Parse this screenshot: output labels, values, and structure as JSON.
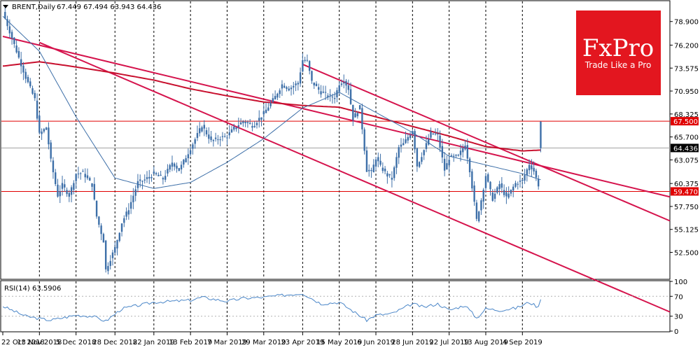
{
  "header": {
    "symbol": "BRENT,Daily",
    "ohlc": "67.449 67.494 63.943 64.436"
  },
  "logo": {
    "brand": "FxPro",
    "slogan": "Trade Like a Pro",
    "color": "#e3161f"
  },
  "colors": {
    "candle": "#3d6fa8",
    "ma_fast": "#3d6fa8",
    "ma_slow": "#c8102e",
    "channel": "#d5134c",
    "level_line": "#e00000",
    "rsi_line": "#4a86c8",
    "grid": "#000000"
  },
  "chart_data": [
    {
      "type": "candlestick",
      "title": "BRENT,Daily",
      "ylim": [
        49.5,
        81.2
      ],
      "y_ticks": [
        "78.900",
        "76.200",
        "73.575",
        "70.950",
        "68.325",
        "65.700",
        "63.075",
        "60.375",
        "57.750",
        "55.125",
        "52.500"
      ],
      "x_ticks": [
        "22 Oct 2018",
        "13 Nov 2018",
        "5 Dec 2018",
        "28 Dec 2018",
        "22 Jan 2019",
        "13 Feb 2019",
        "7 Mar 2019",
        "29 Mar 2019",
        "23 Apr 2019",
        "15 May 2019",
        "6 Jun 2019",
        "28 Jun 2019",
        "22 Jul 2019",
        "13 Aug 2019",
        "4 Sep 2019"
      ],
      "price_path": [
        [
          "22 Oct 2018",
          80.0
        ],
        [
          "26 Oct 2018",
          77.0
        ],
        [
          "1 Nov 2018",
          74.0
        ],
        [
          "5 Nov 2018",
          72.5
        ],
        [
          "9 Nov 2018",
          70.0
        ],
        [
          "13 Nov 2018",
          66.0
        ],
        [
          "16 Nov 2018",
          66.8
        ],
        [
          "20 Nov 2018",
          63.0
        ],
        [
          "23 Nov 2018",
          59.0
        ],
        [
          "27 Nov 2018",
          60.2
        ],
        [
          "30 Nov 2018",
          59.0
        ],
        [
          "5 Dec 2018",
          61.5
        ],
        [
          "10 Dec 2018",
          61.6
        ],
        [
          "14 Dec 2018",
          60.2
        ],
        [
          "18 Dec 2018",
          56.6
        ],
        [
          "21 Dec 2018",
          53.8
        ],
        [
          "24 Dec 2018",
          50.5
        ],
        [
          "28 Dec 2018",
          53.0
        ],
        [
          "2 Jan 2019",
          55.9
        ],
        [
          "7 Jan 2019",
          57.5
        ],
        [
          "11 Jan 2019",
          60.5
        ],
        [
          "16 Jan 2019",
          60.8
        ],
        [
          "22 Jan 2019",
          61.5
        ],
        [
          "28 Jan 2019",
          60.9
        ],
        [
          "1 Feb 2019",
          62.8
        ],
        [
          "6 Feb 2019",
          61.9
        ],
        [
          "13 Feb 2019",
          64.4
        ],
        [
          "20 Feb 2019",
          67.0
        ],
        [
          "26 Feb 2019",
          65.2
        ],
        [
          "4 Mar 2019",
          65.6
        ],
        [
          "7 Mar 2019",
          65.8
        ],
        [
          "12 Mar 2019",
          66.7
        ],
        [
          "18 Mar 2019",
          67.5
        ],
        [
          "22 Mar 2019",
          67.0
        ],
        [
          "25 Mar 2019",
          67.2
        ],
        [
          "29 Mar 2019",
          68.4
        ],
        [
          "5 Apr 2019",
          70.3
        ],
        [
          "10 Apr 2019",
          71.7
        ],
        [
          "15 Apr 2019",
          71.2
        ],
        [
          "19 Apr 2019",
          71.9
        ],
        [
          "23 Apr 2019",
          74.5
        ],
        [
          "25 Apr 2019",
          74.3
        ],
        [
          "29 Apr 2019",
          72.0
        ],
        [
          "3 May 2019",
          70.8
        ],
        [
          "8 May 2019",
          70.4
        ],
        [
          "13 May 2019",
          70.2
        ],
        [
          "15 May 2019",
          71.8
        ],
        [
          "17 May 2019",
          72.2
        ],
        [
          "21 May 2019",
          71.2
        ],
        [
          "23 May 2019",
          67.8
        ],
        [
          "28 May 2019",
          69.1
        ],
        [
          "31 May 2019",
          61.9
        ],
        [
          "4 Jun 2019",
          61.6
        ],
        [
          "6 Jun 2019",
          63.3
        ],
        [
          "10 Jun 2019",
          62.3
        ],
        [
          "13 Jun 2019",
          61.3
        ],
        [
          "17 Jun 2019",
          60.9
        ],
        [
          "20 Jun 2019",
          64.5
        ],
        [
          "24 Jun 2019",
          64.9
        ],
        [
          "28 Jun 2019",
          66.5
        ],
        [
          "2 Jul 2019",
          62.4
        ],
        [
          "5 Jul 2019",
          64.2
        ],
        [
          "10 Jul 2019",
          66.1
        ],
        [
          "15 Jul 2019",
          65.9
        ],
        [
          "18 Jul 2019",
          61.9
        ],
        [
          "22 Jul 2019",
          63.3
        ],
        [
          "26 Jul 2019",
          63.5
        ],
        [
          "31 Jul 2019",
          64.9
        ],
        [
          "2 Aug 2019",
          61.9
        ],
        [
          "7 Aug 2019",
          56.2
        ],
        [
          "9 Aug 2019",
          58.5
        ],
        [
          "13 Aug 2019",
          61.3
        ],
        [
          "16 Aug 2019",
          58.6
        ],
        [
          "21 Aug 2019",
          60.3
        ],
        [
          "26 Aug 2019",
          58.7
        ],
        [
          "30 Aug 2019",
          60.4
        ],
        [
          "4 Sep 2019",
          60.7
        ],
        [
          "9 Sep 2019",
          62.6
        ],
        [
          "11 Sep 2019",
          61.8
        ],
        [
          "13 Sep 2019",
          60.2
        ],
        [
          "16 Sep 2019",
          64.4
        ]
      ],
      "last_candle": {
        "open": 67.449,
        "high": 67.494,
        "low": 63.943,
        "close": 64.436
      },
      "horizontal_levels": [
        {
          "price": 67.5,
          "label": "67.500"
        },
        {
          "price": 59.47,
          "label": "59.470"
        }
      ],
      "current_price": {
        "price": 64.436,
        "label": "64.436"
      },
      "ma_fast_path": [
        [
          "22 Oct 2018",
          79.5
        ],
        [
          "13 Nov 2018",
          75.5
        ],
        [
          "5 Dec 2018",
          68.0
        ],
        [
          "28 Dec 2018",
          61.0
        ],
        [
          "22 Jan 2019",
          59.8
        ],
        [
          "13 Feb 2019",
          60.5
        ],
        [
          "7 Mar 2019",
          62.8
        ],
        [
          "29 Mar 2019",
          65.5
        ],
        [
          "23 Apr 2019",
          69.0
        ],
        [
          "15 May 2019",
          70.8
        ],
        [
          "6 Jun 2019",
          68.5
        ],
        [
          "28 Jun 2019",
          66.2
        ],
        [
          "22 Jul 2019",
          63.5
        ],
        [
          "13 Aug 2019",
          62.5
        ],
        [
          "4 Sep 2019",
          61.5
        ],
        [
          "16 Sep 2019",
          60.8
        ]
      ],
      "ma_slow_path": [
        [
          "22 Oct 2018",
          73.8
        ],
        [
          "13 Nov 2018",
          74.3
        ],
        [
          "5 Dec 2018",
          73.7
        ],
        [
          "28 Dec 2018",
          73.0
        ],
        [
          "22 Jan 2019",
          72.2
        ],
        [
          "13 Feb 2019",
          71.2
        ],
        [
          "7 Mar 2019",
          70.4
        ],
        [
          "29 Mar 2019",
          69.7
        ],
        [
          "23 Apr 2019",
          69.3
        ],
        [
          "15 May 2019",
          69.1
        ],
        [
          "6 Jun 2019",
          68.0
        ],
        [
          "28 Jun 2019",
          66.9
        ],
        [
          "22 Jul 2019",
          65.8
        ],
        [
          "13 Aug 2019",
          64.6
        ],
        [
          "4 Sep 2019",
          64.1
        ],
        [
          "16 Sep 2019",
          64.2
        ]
      ],
      "channel_lines": [
        [
          [
            "22 Oct 2018",
            77.2
          ],
          [
            "16 Sep 2019",
            62.4
          ]
        ],
        [
          [
            "23 Apr 2019",
            74.0
          ],
          [
            "16 Sep 2019",
            62.4
          ]
        ],
        [
          [
            "13 Nov 2018",
            76.5
          ],
          [
            "16 Sep 2019",
            52.0
          ]
        ]
      ]
    },
    {
      "type": "line",
      "title": "RSI(14) 63.5906",
      "ylim": [
        0,
        100
      ],
      "y_ticks": [
        "100",
        "70",
        "30",
        "0"
      ],
      "levels": [
        70,
        30
      ],
      "rsi_path": [
        [
          "22 Oct 2018",
          50
        ],
        [
          "5 Nov 2018",
          30
        ],
        [
          "13 Nov 2018",
          25
        ],
        [
          "20 Nov 2018",
          22
        ],
        [
          "5 Dec 2018",
          32
        ],
        [
          "14 Dec 2018",
          30
        ],
        [
          "24 Dec 2018",
          20
        ],
        [
          "2 Jan 2019",
          45
        ],
        [
          "22 Jan 2019",
          58
        ],
        [
          "13 Feb 2019",
          62
        ],
        [
          "20 Feb 2019",
          68
        ],
        [
          "7 Mar 2019",
          60
        ],
        [
          "18 Mar 2019",
          66
        ],
        [
          "29 Mar 2019",
          68
        ],
        [
          "10 Apr 2019",
          72
        ],
        [
          "23 Apr 2019",
          76
        ],
        [
          "3 May 2019",
          55
        ],
        [
          "15 May 2019",
          58
        ],
        [
          "23 May 2019",
          40
        ],
        [
          "31 May 2019",
          22
        ],
        [
          "6 Jun 2019",
          32
        ],
        [
          "17 Jun 2019",
          35
        ],
        [
          "28 Jun 2019",
          55
        ],
        [
          "5 Jul 2019",
          48
        ],
        [
          "15 Jul 2019",
          55
        ],
        [
          "22 Jul 2019",
          42
        ],
        [
          "31 Jul 2019",
          52
        ],
        [
          "7 Aug 2019",
          26
        ],
        [
          "13 Aug 2019",
          45
        ],
        [
          "21 Aug 2019",
          42
        ],
        [
          "30 Aug 2019",
          46
        ],
        [
          "9 Sep 2019",
          58
        ],
        [
          "13 Sep 2019",
          48
        ],
        [
          "16 Sep 2019",
          63.6
        ]
      ]
    }
  ]
}
